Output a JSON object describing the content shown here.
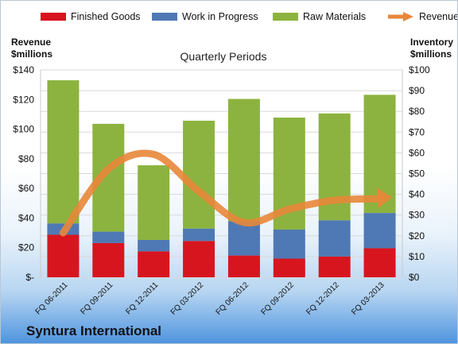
{
  "legend": {
    "finished_goods": "Finished Goods",
    "work_in_progress": "Work in Progress",
    "raw_materials": "Raw Materials",
    "revenue": "Revenue"
  },
  "left_axis_title": [
    "Revenue",
    "$millions"
  ],
  "right_axis_title": [
    "Inventory",
    "$millions"
  ],
  "company_name": "Syntura International",
  "colors": {
    "finished_goods": "#d7151f",
    "work_in_progress": "#4f79b4",
    "raw_materials": "#8cb33f",
    "revenue": "#e8873a"
  },
  "chart_data": {
    "type": "bar",
    "stacked": true,
    "title": "Quarterly Periods",
    "categories": [
      "FQ 06-2011",
      "FQ 09-2011",
      "FQ 12-2011",
      "FQ 03-2012",
      "FQ 06-2012",
      "FQ 09-2012",
      "FQ 12-2012",
      "FQ 03-2013"
    ],
    "series": [
      {
        "name": "Finished Goods",
        "axis": "right",
        "values": [
          20.5,
          16.5,
          12.5,
          17.5,
          10.5,
          9,
          10,
          14
        ]
      },
      {
        "name": "Work in Progress",
        "axis": "right",
        "values": [
          5.5,
          5.5,
          5.5,
          6,
          16.5,
          14,
          17.5,
          17
        ]
      },
      {
        "name": "Raw Materials",
        "axis": "right",
        "values": [
          69,
          52,
          36,
          52,
          59,
          54,
          51.5,
          57
        ]
      },
      {
        "name": "Revenue",
        "type": "line",
        "axis": "left",
        "values": [
          30,
          73,
          83,
          58,
          37,
          46,
          52,
          53
        ]
      }
    ],
    "left_axis": {
      "ylim": [
        0,
        140
      ],
      "ticks": [
        "$-",
        "$20",
        "$40",
        "$60",
        "$80",
        "$100",
        "$120",
        "$140"
      ]
    },
    "right_axis": {
      "ylim": [
        0,
        100
      ],
      "ticks": [
        "$0",
        "$10",
        "$20",
        "$30",
        "$40",
        "$50",
        "$60",
        "$70",
        "$80",
        "$90",
        "$100"
      ]
    },
    "grid": true,
    "legend_position": "top"
  }
}
